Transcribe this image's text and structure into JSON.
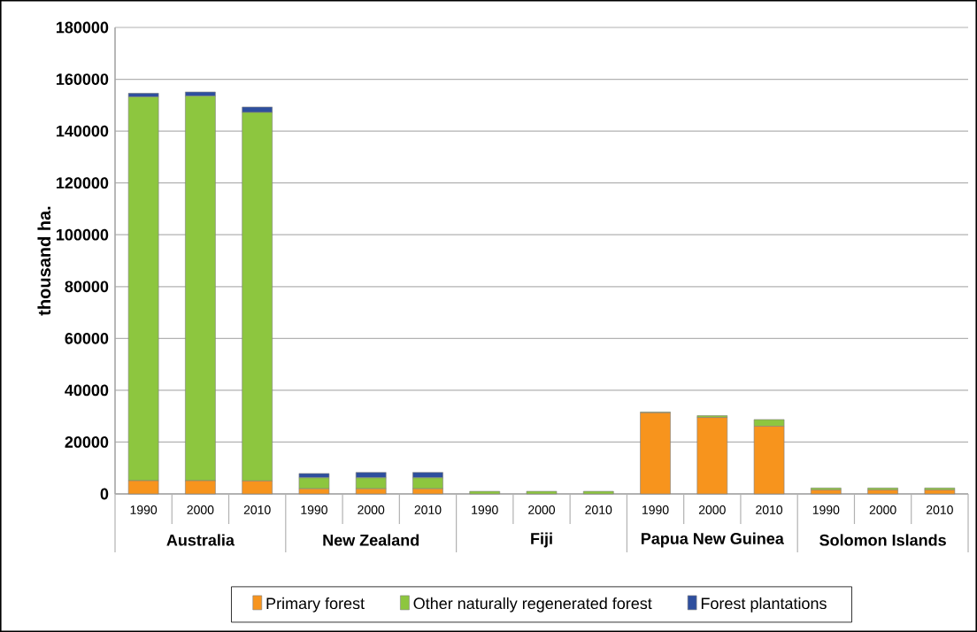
{
  "chart_data": {
    "type": "bar",
    "stacked": true,
    "ylabel": "thousand ha.",
    "categories": [
      "1990",
      "2000",
      "2010",
      "1990",
      "2000",
      "2010",
      "1990",
      "2000",
      "2010",
      "1990",
      "2000",
      "2010",
      "1990",
      "2000",
      "2010"
    ],
    "annotations": [
      "Australia",
      "New Zealand",
      "Fiji",
      "Papua New Guinea",
      "Solomon Islands"
    ],
    "series": [
      {
        "name": "Primary forest",
        "color": "#f7941d",
        "values": [
          5100,
          5100,
          5000,
          2000,
          2000,
          2000,
          null,
          null,
          null,
          31300,
          29500,
          26100,
          1500,
          1500,
          1500
        ]
      },
      {
        "name": "Other naturally regenerated forest",
        "color": "#8dc63f",
        "values": [
          148100,
          148400,
          142200,
          4200,
          4200,
          4200,
          1000,
          1000,
          1000,
          300,
          700,
          2600,
          800,
          800,
          800
        ]
      },
      {
        "name": "Forest plantations",
        "color": "#2e4f9e",
        "values": [
          1400,
          1600,
          2100,
          1700,
          2100,
          2100,
          null,
          null,
          null,
          0,
          0,
          0,
          0,
          0,
          0
        ]
      }
    ],
    "ylim": [
      0,
      180000
    ],
    "yticks": [
      0,
      20000,
      40000,
      60000,
      80000,
      100000,
      120000,
      140000,
      160000,
      180000
    ],
    "grid": "y",
    "legend": "bottom"
  }
}
